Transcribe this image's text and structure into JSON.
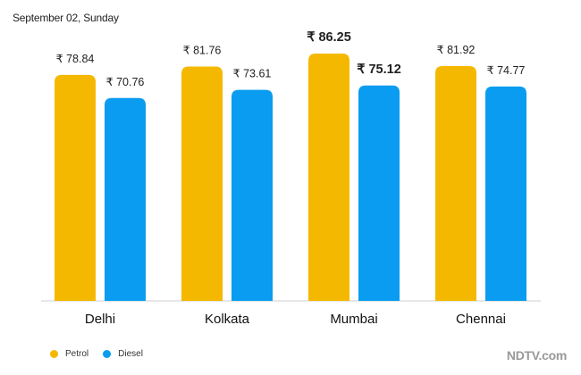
{
  "header": {
    "subtitle": "September 02, Sunday"
  },
  "brand": {
    "logo_text": "NDTV.com"
  },
  "colors": {
    "petrol": "#F5B800",
    "diesel": "#0A9CF0",
    "text": "#222222"
  },
  "chart_data": {
    "type": "bar",
    "title": "",
    "subtitle": "September 02, Sunday",
    "xlabel": "",
    "ylabel": "",
    "ylim": [
      0,
      90
    ],
    "grid": false,
    "legend_position": "bottom-left",
    "categories": [
      "Delhi",
      "Kolkata",
      "Mumbai",
      "Chennai"
    ],
    "series": [
      {
        "name": "Petrol",
        "color": "#F5B800",
        "values": [
          78.84,
          81.76,
          86.25,
          81.92
        ],
        "labels": [
          "₹ 78.84",
          "₹  81.76",
          "₹ 86.25",
          "₹ 81.92"
        ]
      },
      {
        "name": "Diesel",
        "color": "#0A9CF0",
        "values": [
          70.76,
          73.61,
          75.12,
          74.77
        ],
        "labels": [
          "₹ 70.76",
          "₹ 73.61",
          "₹ 75.12",
          "₹ 74.77"
        ]
      }
    ],
    "highlight_category": "Mumbai"
  }
}
